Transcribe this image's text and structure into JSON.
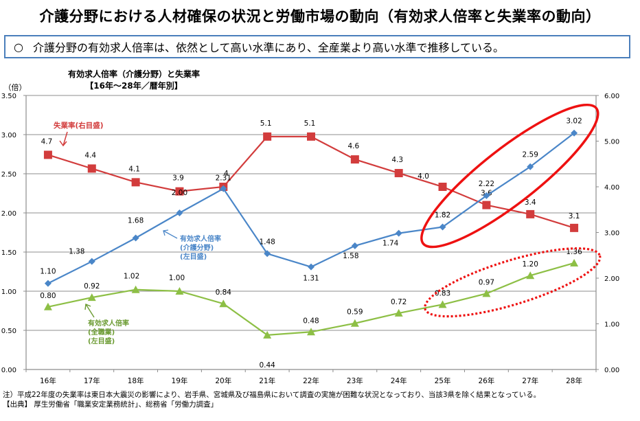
{
  "page": {
    "title": "介護分野における人材確保の状況と労働市場の動向（有効求人倍率と失業率の動向）",
    "summary_bullet": "○",
    "summary": "介護分野の有効求人倍率は、依然として高い水準にあり、全産業より高い水準で推移している。",
    "note": "注）平成22年度の失業率は東日本大震災の影響により、岩手県、宮城県及び福島県において調査の実施が困難な状況となっており、当該3県を除く結果となっている。",
    "source": "【出典】 厚生労働省「職業安定業務統計」、総務省「労働力調査」"
  },
  "chart_data": {
    "type": "line",
    "title": "有効求人倍率（介護分野）と失業率",
    "subtitle": "【16年～28年／暦年別】",
    "xlabel": "",
    "ylabel": "（倍）",
    "ylim": [
      0,
      3.5
    ],
    "y_ticks": [
      "0.00",
      "0.50",
      "1.00",
      "1.50",
      "2.00",
      "2.50",
      "3.00",
      "3.50"
    ],
    "y_tick_values": [
      0,
      0.5,
      1.0,
      1.5,
      2.0,
      2.5,
      3.0,
      3.5
    ],
    "y2lim": [
      0,
      6
    ],
    "y2_ticks": [
      "0.00",
      "1.00",
      "2.00",
      "3.00",
      "4.00",
      "5.00",
      "6.00"
    ],
    "y2_tick_values": [
      0,
      1,
      2,
      3,
      4,
      5,
      6
    ],
    "grid": true,
    "categories": [
      "16年",
      "17年",
      "18年",
      "19年",
      "20年",
      "21年",
      "22年",
      "23年",
      "24年",
      "25年",
      "26年",
      "27年",
      "28年"
    ],
    "series": [
      {
        "name": "失業率（右目盛）",
        "axis": "right",
        "color": "#d23c3c",
        "marker": "square",
        "values": [
          4.7,
          4.4,
          4.1,
          3.9,
          4.0,
          5.1,
          5.1,
          4.6,
          4.3,
          4.0,
          3.6,
          3.4,
          3.1
        ],
        "labels": [
          "4.7",
          "4.4",
          "4.1",
          "3.9",
          "4",
          "5.1",
          "5.1",
          "4.6",
          "4.3",
          "4.0",
          "3.6",
          "3.4",
          "3.1"
        ]
      },
      {
        "name": "有効求人倍率（介護分野）（左目盛）",
        "axis": "left",
        "color": "#4a86c8",
        "marker": "diamond",
        "values": [
          1.1,
          1.38,
          1.68,
          2.0,
          2.31,
          1.48,
          1.31,
          1.58,
          1.74,
          1.82,
          2.22,
          2.59,
          3.02
        ],
        "labels": [
          "1.10",
          "1.38",
          "1.68",
          "2.00",
          "2.31",
          "1.48",
          "1.31",
          "1.58",
          "1.74",
          "1.82",
          "2.22",
          "2.59",
          "3.02"
        ]
      },
      {
        "name": "有効求人倍率（全職業）（左目盛）",
        "axis": "left",
        "color": "#8dbf45",
        "marker": "triangle",
        "values": [
          0.8,
          0.92,
          1.02,
          1.0,
          0.84,
          0.44,
          0.48,
          0.59,
          0.72,
          0.83,
          0.97,
          1.2,
          1.36
        ],
        "labels": [
          "0.80",
          "0.92",
          "1.02",
          "1.00",
          "0.84",
          "0.44",
          "0.48",
          "0.59",
          "0.72",
          "0.83",
          "0.97",
          "1.20",
          "1.36"
        ]
      }
    ],
    "annotations": [
      {
        "series": 0,
        "lines": [
          "失業率(右目盛)"
        ],
        "color": "#d23c3c"
      },
      {
        "series": 1,
        "lines": [
          "有効求人倍率",
          "(介護分野)",
          "(左目盛)"
        ],
        "color": "#4a86c8"
      },
      {
        "series": 2,
        "lines": [
          "有効求人倍率",
          "(全職業)",
          "(左目盛)"
        ],
        "color": "#6a9a30"
      }
    ],
    "highlights": [
      {
        "type": "solid-ellipse",
        "color": "#ee1111",
        "target": "介護分野 25年〜28年"
      },
      {
        "type": "dotted-ellipse",
        "color": "#ee1111",
        "target": "全職業 25年〜28年"
      }
    ]
  }
}
